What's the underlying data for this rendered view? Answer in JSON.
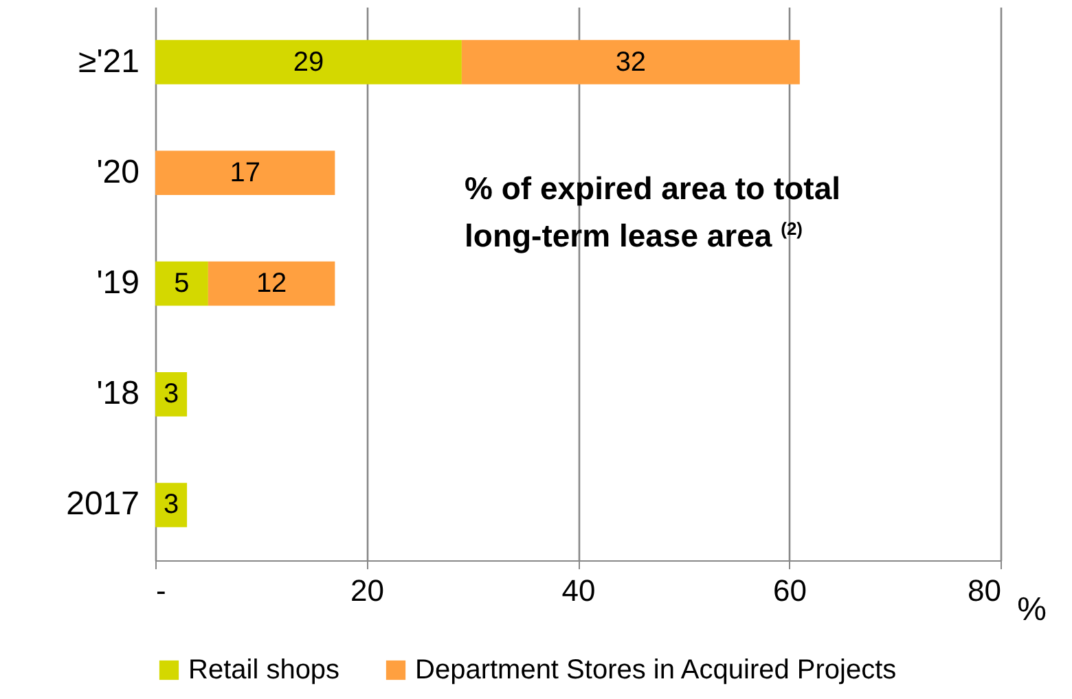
{
  "chart_data": {
    "type": "bar",
    "orientation": "horizontal",
    "stacked": true,
    "categories": [
      "≥'21",
      "'20",
      "'19",
      "'18",
      "2017"
    ],
    "series": [
      {
        "name": "Retail shops",
        "color": "#d4d800",
        "values": [
          29,
          null,
          5,
          3,
          3
        ]
      },
      {
        "name": "Department Stores in Acquired Projects",
        "color": "#ffa040",
        "values": [
          32,
          17,
          12,
          null,
          null
        ]
      }
    ],
    "xlabel": "%",
    "xlim": [
      0,
      80
    ],
    "xticks": [
      {
        "value": 0,
        "label": "-"
      },
      20,
      40,
      60,
      80
    ],
    "grid": "x",
    "legend": "bottom",
    "data_labels": true,
    "annotations": [
      "% of expired area to total long-term lease area $^{(2)}$"
    ]
  }
}
